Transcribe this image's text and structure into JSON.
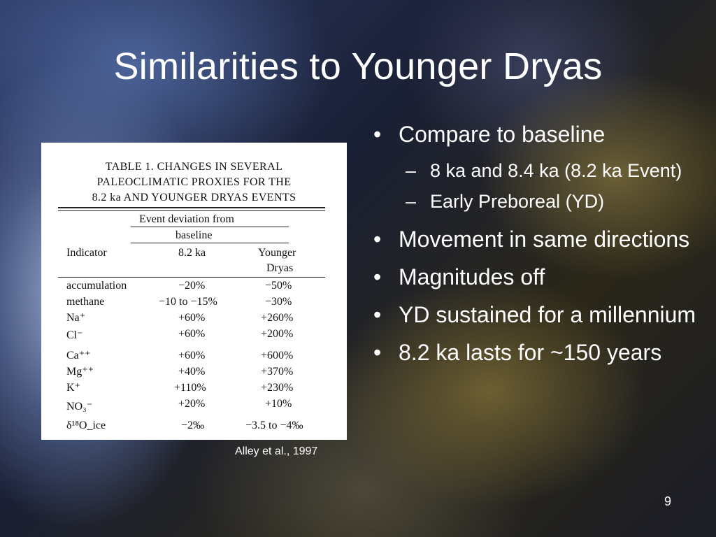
{
  "slide": {
    "title": "Similarities to Younger Dryas",
    "citation": "Alley et al., 1997",
    "page_number": "9"
  },
  "table": {
    "caption_lines": [
      "TABLE 1.  CHANGES IN SEVERAL",
      "PALEOCLIMATIC PROXIES FOR THE",
      "8.2 ka AND YOUNGER DRYAS EVENTS"
    ],
    "group_header_lines": [
      "Event deviation from",
      "baseline"
    ],
    "headers": {
      "indicator": "Indicator",
      "ka82": "8.2 ka",
      "yd_line1": "Younger",
      "yd_line2": "Dryas"
    },
    "rows": [
      {
        "indicator": "accumulation",
        "ka82": "−20%",
        "yd": "−50%"
      },
      {
        "indicator": "methane",
        "ka82": "−10 to −15%",
        "yd": "−30%"
      },
      {
        "indicator": "Na⁺",
        "ka82": "+60%",
        "yd": "+260%"
      },
      {
        "indicator": "Cl⁻",
        "ka82": "+60%",
        "yd": "+200%"
      },
      {
        "indicator": "Ca⁺⁺",
        "ka82": "+60%",
        "yd": "+600%"
      },
      {
        "indicator": "Mg⁺⁺",
        "ka82": "+40%",
        "yd": "+370%"
      },
      {
        "indicator": "K⁺",
        "ka82": "+110%",
        "yd": "+230%"
      },
      {
        "indicator": "NO₃⁻",
        "ka82": "+20%",
        "yd": "+10%"
      },
      {
        "indicator": "δ¹⁸O_ice",
        "ka82": "−2‰",
        "yd": "−3.5 to −4‰"
      }
    ]
  },
  "bullets": [
    {
      "text": "Compare to baseline",
      "sub": [
        "8 ka and 8.4 ka (8.2 ka Event)",
        "Early Preboreal (YD)"
      ]
    },
    {
      "text": "Movement in same directions",
      "sub": []
    },
    {
      "text": "Magnitudes off",
      "sub": []
    },
    {
      "text": "YD sustained for a millennium",
      "sub": []
    },
    {
      "text": "8.2 ka lasts for ~150 years",
      "sub": []
    }
  ],
  "markers": {
    "bullet": "•",
    "dash": "–"
  },
  "colors": {
    "background_dark": "#1c2030",
    "text": "#ffffff",
    "accent_gold": "#8a7a45",
    "accent_blue": "#7f94bf"
  }
}
